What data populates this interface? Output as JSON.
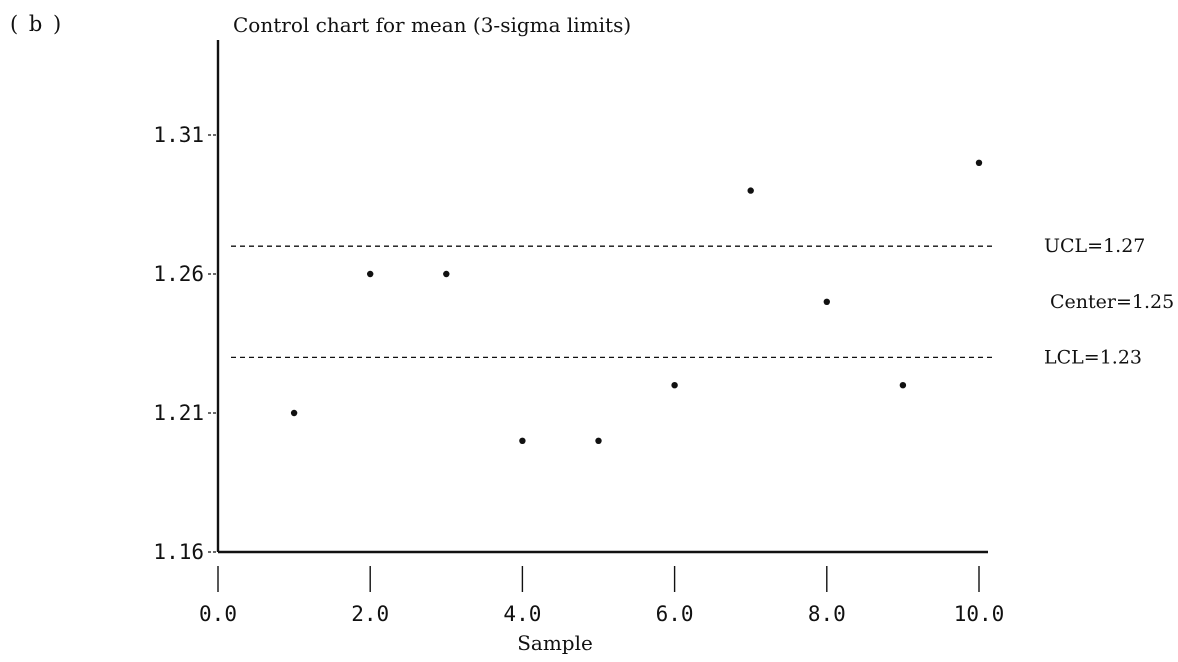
{
  "panel_label": "( b )",
  "chart_data": {
    "type": "scatter",
    "title": "Control chart for mean (3-sigma limits)",
    "xlabel": "Sample",
    "ylabel": "",
    "xlim": [
      0,
      10
    ],
    "ylim": [
      1.16,
      1.31
    ],
    "x_ticks": [
      0,
      2,
      4,
      6,
      8,
      10
    ],
    "x_tick_labels": [
      "0.0",
      "2.0",
      "4.0",
      "6.0",
      "8.0",
      "10.0"
    ],
    "y_ticks": [
      1.16,
      1.21,
      1.26,
      1.31
    ],
    "y_tick_labels": [
      "1.16",
      "1.21",
      "1.26",
      "1.31"
    ],
    "grid": false,
    "points": {
      "x": [
        1,
        2,
        3,
        4,
        5,
        6,
        7,
        8,
        9,
        10
      ],
      "y": [
        1.21,
        1.26,
        1.26,
        1.2,
        1.2,
        1.22,
        1.29,
        1.25,
        1.22,
        1.3
      ]
    },
    "reference_lines": [
      {
        "label": "UCL=1.27",
        "value": 1.27,
        "style": "dashed",
        "drawn": true
      },
      {
        "label": "Center=1.25",
        "value": 1.25,
        "style": "none",
        "drawn": false
      },
      {
        "label": "LCL=1.23",
        "value": 1.23,
        "style": "dashed",
        "drawn": true
      }
    ],
    "colors": {
      "ink": "#111111",
      "background": "#ffffff"
    }
  }
}
